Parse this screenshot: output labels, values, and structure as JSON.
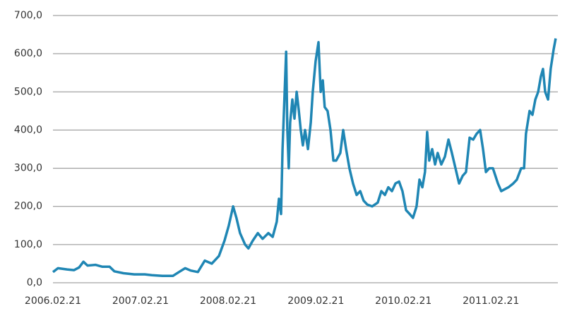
{
  "chart_data": {
    "type": "line",
    "x": [
      "2006.02.21",
      "2006.03.14",
      "2006.04.21",
      "2006.05.20",
      "2006.06.10",
      "2006.06.28",
      "2006.07.15",
      "2006.08.17",
      "2006.09.15",
      "2006.10.15",
      "2006.11.04",
      "2006.12.12",
      "2007.01.26",
      "2007.03.11",
      "2007.04.09",
      "2007.05.23",
      "2007.07.06",
      "2007.08.05",
      "2007.08.26",
      "2007.09.18",
      "2007.10.18",
      "2007.11.16",
      "2007.12.15",
      "2008.01.14",
      "2008.02.06",
      "2008.02.24",
      "2008.03.13",
      "2008.03.27",
      "2008.04.11",
      "2008.05.02",
      "2008.05.16",
      "2008.06.03",
      "2008.06.24",
      "2008.07.14",
      "2008.08.07",
      "2008.08.25",
      "2008.09.11",
      "2008.09.20",
      "2008.09.29",
      "2008.10.05",
      "2008.10.14",
      "2008.10.20",
      "2008.10.25",
      "2008.10.31",
      "2008.11.06",
      "2008.11.15",
      "2008.11.24",
      "2008.12.03",
      "2008.12.12",
      "2008.12.20",
      "2008.12.29",
      "2009.01.07",
      "2009.01.19",
      "2009.01.31",
      "2009.02.08",
      "2009.02.20",
      "2009.03.04",
      "2009.03.13",
      "2009.03.22",
      "2009.03.30",
      "2009.04.11",
      "2009.04.23",
      "2009.05.05",
      "2009.05.17",
      "2009.06.03",
      "2009.06.15",
      "2009.06.27",
      "2009.07.11",
      "2009.07.26",
      "2009.08.10",
      "2009.08.25",
      "2009.09.08",
      "2009.09.23",
      "2009.10.14",
      "2009.11.06",
      "2009.11.21",
      "2009.12.06",
      "2009.12.20",
      "2010.01.04",
      "2010.01.19",
      "2010.02.03",
      "2010.02.17",
      "2010.03.04",
      "2010.03.19",
      "2010.04.02",
      "2010.04.17",
      "2010.04.29",
      "2010.05.11",
      "2010.05.22",
      "2010.05.31",
      "2010.06.09",
      "2010.06.21",
      "2010.07.03",
      "2010.07.14",
      "2010.07.29",
      "2010.08.13",
      "2010.08.28",
      "2010.09.11",
      "2010.09.26",
      "2010.10.11",
      "2010.10.26",
      "2010.11.09",
      "2010.11.24",
      "2010.12.09",
      "2010.12.23",
      "2011.01.07",
      "2011.01.19",
      "2011.01.31",
      "2011.02.14",
      "2011.03.01",
      "2011.03.22",
      "2011.04.05",
      "2011.05.05",
      "2011.05.25",
      "2011.06.09",
      "2011.06.27",
      "2011.07.09",
      "2011.07.17",
      "2011.08.01",
      "2011.08.13",
      "2011.08.25",
      "2011.09.06",
      "2011.09.17",
      "2011.09.26",
      "2011.10.05",
      "2011.10.17",
      "2011.10.28",
      "2011.11.09",
      "2011.11.18"
    ],
    "series": [
      {
        "color": "#1f86b4",
        "values": [
          28,
          38,
          35,
          33,
          40,
          55,
          45,
          47,
          42,
          42,
          30,
          25,
          22,
          22,
          20,
          18,
          18,
          30,
          38,
          32,
          28,
          58,
          50,
          70,
          110,
          150,
          200,
          170,
          130,
          100,
          90,
          110,
          130,
          115,
          130,
          120,
          160,
          220,
          180,
          350,
          500,
          605,
          400,
          300,
          420,
          480,
          430,
          500,
          450,
          400,
          360,
          400,
          350,
          420,
          500,
          580,
          630,
          500,
          530,
          460,
          450,
          400,
          320,
          320,
          340,
          400,
          350,
          300,
          260,
          230,
          240,
          215,
          205,
          200,
          210,
          240,
          230,
          250,
          240,
          260,
          265,
          240,
          190,
          180,
          170,
          200,
          270,
          250,
          290,
          395,
          320,
          350,
          310,
          340,
          310,
          330,
          375,
          340,
          300,
          260,
          280,
          290,
          380,
          375,
          390,
          400,
          350,
          290,
          300,
          300,
          260,
          240,
          250,
          260,
          270,
          300,
          300,
          390,
          450,
          440,
          480,
          500,
          540,
          560,
          500,
          480,
          560,
          610,
          640
        ]
      }
    ],
    "xlim": [
      "2006.02.21",
      "2011.11.27"
    ],
    "xticks": [
      "2006.02.21",
      "2007.02.21",
      "2008.02.21",
      "2009.02.21",
      "2010.02.21",
      "2011.02.21"
    ],
    "ylim": [
      0,
      700
    ],
    "yticks": [
      {
        "value": 0,
        "label": "0,0"
      },
      {
        "value": 100,
        "label": "100,0"
      },
      {
        "value": 200,
        "label": "200,0"
      },
      {
        "value": 300,
        "label": "300,0"
      },
      {
        "value": 400,
        "label": "400,0"
      },
      {
        "value": 500,
        "label": "500,0"
      },
      {
        "value": 600,
        "label": "600,0"
      },
      {
        "value": 700,
        "label": "700,0"
      }
    ],
    "grid": true
  }
}
